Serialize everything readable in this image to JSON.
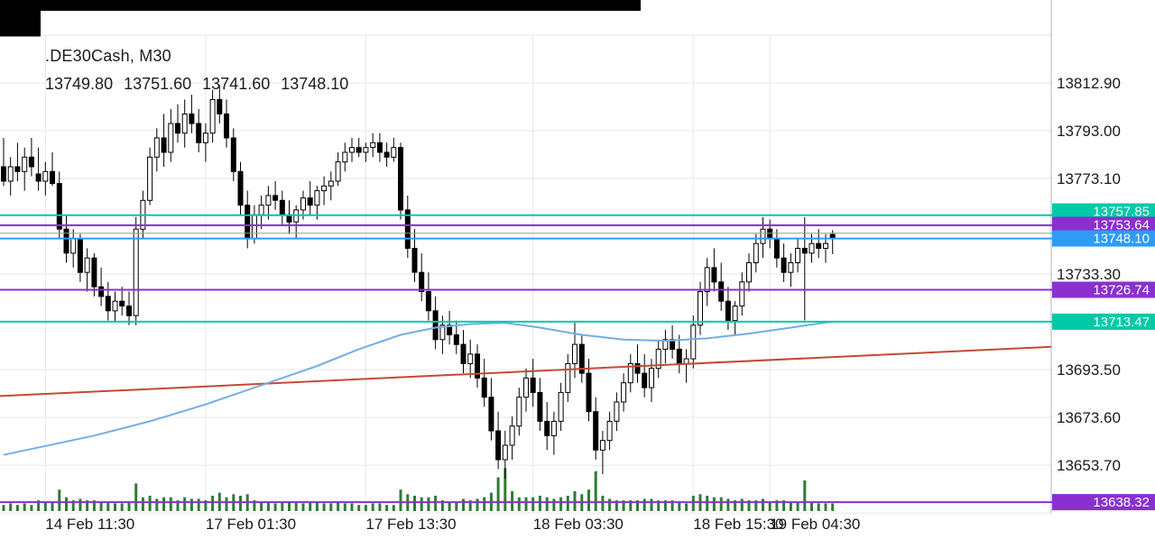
{
  "header": {
    "title": ".DE30Cash, M30",
    "ohlc_line": "13749.80 13751.60 13741.60 13748.10"
  },
  "chart_data": {
    "type": "candlestick",
    "symbol": ".DE30Cash",
    "timeframe": "M30",
    "last_bar": {
      "open": 13749.8,
      "high": 13751.6,
      "low": 13741.6,
      "close": 13748.1
    },
    "y_axis": {
      "grid_prices": [
        13832.8,
        13812.9,
        13793.0,
        13773.1,
        13753.2,
        13733.3,
        13713.4,
        13693.5,
        13673.6,
        13653.7,
        13633.8
      ],
      "labels": [
        {
          "text": "13812.90",
          "price": 13812.9
        },
        {
          "text": "13793.00",
          "price": 13793.0
        },
        {
          "text": "13773.10",
          "price": 13773.1
        },
        {
          "text": "13733.30",
          "price": 13733.3
        },
        {
          "text": "13693.50",
          "price": 13693.5
        },
        {
          "text": "13673.60",
          "price": 13673.6
        },
        {
          "text": "13653.70",
          "price": 13653.7
        }
      ]
    },
    "x_axis": {
      "labels": [
        {
          "text": "14 Feb 11:30",
          "index": 6
        },
        {
          "text": "17 Feb 01:30",
          "index": 29
        },
        {
          "text": "17 Feb 13:30",
          "index": 52
        },
        {
          "text": "18 Feb 03:30",
          "index": 76
        },
        {
          "text": "18 Feb 15:30",
          "index": 99
        },
        {
          "text": "19 Feb 04:30",
          "index": 110
        }
      ]
    },
    "levels": [
      {
        "text": "13757.85",
        "price": 13757.85,
        "color": "#00c9a8",
        "badge": true
      },
      {
        "text": "13753.64",
        "price": 13753.64,
        "color": "#8a2fd0",
        "badge": true
      },
      {
        "text": "",
        "price": 13750.3,
        "color": "#9a9a9a",
        "badge": false,
        "width": 1
      },
      {
        "text": "13748.10",
        "price": 13748.1,
        "color": "#2e9bf7",
        "badge": true
      },
      {
        "text": "13726.74",
        "price": 13726.74,
        "color": "#8a2fd0",
        "badge": true
      },
      {
        "text": "13713.47",
        "price": 13713.47,
        "color": "#00c9a8",
        "badge": true
      },
      {
        "text": "13638.32",
        "price": 13638.32,
        "color": "#8a2fd0",
        "badge": true
      }
    ],
    "series": {
      "candles": [
        [
          13778,
          13790,
          13770,
          13772
        ],
        [
          13772,
          13782,
          13766,
          13778
        ],
        [
          13778,
          13788,
          13772,
          13776
        ],
        [
          13776,
          13786,
          13768,
          13782
        ],
        [
          13782,
          13790,
          13774,
          13778
        ],
        [
          13775,
          13786,
          13768,
          13772
        ],
        [
          13772,
          13780,
          13766,
          13776
        ],
        [
          13776,
          13784,
          13770,
          13771
        ],
        [
          13771,
          13776,
          13748,
          13752
        ],
        [
          13752,
          13758,
          13738,
          13742
        ],
        [
          13742,
          13752,
          13736,
          13748
        ],
        [
          13748,
          13750,
          13730,
          13734
        ],
        [
          13734,
          13744,
          13726,
          13740
        ],
        [
          13740,
          13742,
          13724,
          13728
        ],
        [
          13728,
          13736,
          13720,
          13724
        ],
        [
          13724,
          13730,
          13714,
          13718
        ],
        [
          13718,
          13726,
          13713,
          13722
        ],
        [
          13722,
          13728,
          13716,
          13720
        ],
        [
          13720,
          13726,
          13712,
          13716
        ],
        [
          13716,
          13757,
          13712,
          13752
        ],
        [
          13752,
          13768,
          13748,
          13764
        ],
        [
          13764,
          13786,
          13762,
          13782
        ],
        [
          13782,
          13794,
          13776,
          13790
        ],
        [
          13790,
          13800,
          13778,
          13784
        ],
        [
          13784,
          13802,
          13780,
          13796
        ],
        [
          13796,
          13804,
          13788,
          13792
        ],
        [
          13792,
          13806,
          13786,
          13800
        ],
        [
          13800,
          13808,
          13792,
          13796
        ],
        [
          13796,
          13802,
          13784,
          13788
        ],
        [
          13788,
          13796,
          13780,
          13792
        ],
        [
          13792,
          13810,
          13788,
          13806
        ],
        [
          13806,
          13812,
          13796,
          13800
        ],
        [
          13800,
          13806,
          13786,
          13790
        ],
        [
          13790,
          13794,
          13772,
          13776
        ],
        [
          13776,
          13780,
          13758,
          13762
        ],
        [
          13762,
          13768,
          13744,
          13748
        ],
        [
          13748,
          13762,
          13746,
          13758
        ],
        [
          13758,
          13766,
          13752,
          13762
        ],
        [
          13762,
          13770,
          13756,
          13766
        ],
        [
          13766,
          13772,
          13760,
          13764
        ],
        [
          13764,
          13768,
          13754,
          13758
        ],
        [
          13758,
          13764,
          13750,
          13755
        ],
        [
          13755,
          13762,
          13748,
          13760
        ],
        [
          13760,
          13768,
          13756,
          13765
        ],
        [
          13765,
          13772,
          13758,
          13762
        ],
        [
          13762,
          13770,
          13756,
          13768
        ],
        [
          13768,
          13774,
          13762,
          13770
        ],
        [
          13770,
          13776,
          13764,
          13772
        ],
        [
          13772,
          13784,
          13770,
          13780
        ],
        [
          13780,
          13788,
          13776,
          13784
        ],
        [
          13784,
          13790,
          13780,
          13786
        ],
        [
          13786,
          13790,
          13782,
          13784
        ],
        [
          13784,
          13788,
          13780,
          13786
        ],
        [
          13786,
          13792,
          13782,
          13788
        ],
        [
          13788,
          13792,
          13780,
          13784
        ],
        [
          13784,
          13788,
          13778,
          13782
        ],
        [
          13782,
          13790,
          13780,
          13786
        ],
        [
          13786,
          13788,
          13756,
          13760
        ],
        [
          13760,
          13766,
          13740,
          13744
        ],
        [
          13744,
          13752,
          13730,
          13734
        ],
        [
          13734,
          13742,
          13722,
          13726
        ],
        [
          13726,
          13734,
          13714,
          13718
        ],
        [
          13718,
          13724,
          13702,
          13706
        ],
        [
          13706,
          13716,
          13700,
          13712
        ],
        [
          13712,
          13718,
          13704,
          13708
        ],
        [
          13708,
          13714,
          13700,
          13704
        ],
        [
          13704,
          13710,
          13692,
          13696
        ],
        [
          13696,
          13706,
          13690,
          13700
        ],
        [
          13700,
          13704,
          13686,
          13690
        ],
        [
          13690,
          13698,
          13678,
          13682
        ],
        [
          13682,
          13690,
          13664,
          13668
        ],
        [
          13668,
          13676,
          13652,
          13656
        ],
        [
          13656,
          13668,
          13648,
          13662
        ],
        [
          13662,
          13674,
          13656,
          13670
        ],
        [
          13670,
          13686,
          13666,
          13682
        ],
        [
          13682,
          13694,
          13676,
          13690
        ],
        [
          13690,
          13698,
          13678,
          13684
        ],
        [
          13684,
          13690,
          13668,
          13672
        ],
        [
          13672,
          13680,
          13660,
          13666
        ],
        [
          13666,
          13676,
          13658,
          13672
        ],
        [
          13672,
          13688,
          13668,
          13684
        ],
        [
          13684,
          13700,
          13680,
          13696
        ],
        [
          13696,
          13713,
          13690,
          13704
        ],
        [
          13704,
          13708,
          13688,
          13692
        ],
        [
          13692,
          13698,
          13672,
          13676
        ],
        [
          13676,
          13682,
          13656,
          13660
        ],
        [
          13660,
          13668,
          13650,
          13664
        ],
        [
          13664,
          13676,
          13660,
          13672
        ],
        [
          13672,
          13684,
          13668,
          13680
        ],
        [
          13680,
          13692,
          13676,
          13688
        ],
        [
          13688,
          13700,
          13684,
          13696
        ],
        [
          13696,
          13704,
          13688,
          13692
        ],
        [
          13692,
          13700,
          13682,
          13686
        ],
        [
          13686,
          13698,
          13680,
          13694
        ],
        [
          13694,
          13706,
          13690,
          13702
        ],
        [
          13702,
          13710,
          13696,
          13706
        ],
        [
          13706,
          13712,
          13698,
          13702
        ],
        [
          13702,
          13708,
          13692,
          13696
        ],
        [
          13696,
          13702,
          13688,
          13698
        ],
        [
          13698,
          13716,
          13694,
          13712
        ],
        [
          13712,
          13730,
          13708,
          13726
        ],
        [
          13726,
          13740,
          13720,
          13736
        ],
        [
          13736,
          13744,
          13726,
          13730
        ],
        [
          13730,
          13738,
          13718,
          13722
        ],
        [
          13722,
          13728,
          13710,
          13714
        ],
        [
          13714,
          13722,
          13708,
          13720
        ],
        [
          13720,
          13734,
          13716,
          13730
        ],
        [
          13730,
          13742,
          13726,
          13738
        ],
        [
          13738,
          13750,
          13734,
          13746
        ],
        [
          13746,
          13757,
          13740,
          13752
        ],
        [
          13752,
          13756,
          13744,
          13748
        ],
        [
          13748,
          13752,
          13736,
          13740
        ],
        [
          13740,
          13746,
          13730,
          13734
        ],
        [
          13734,
          13742,
          13728,
          13738
        ],
        [
          13738,
          13748,
          13734,
          13744
        ],
        [
          13744,
          13757,
          13714,
          13742
        ],
        [
          13742,
          13750,
          13738,
          13746
        ],
        [
          13746,
          13752,
          13740,
          13744
        ],
        [
          13744,
          13750,
          13738,
          13746
        ],
        [
          13749.8,
          13751.6,
          13741.6,
          13748.1
        ]
      ],
      "volumes": [
        4,
        5,
        4,
        5,
        4,
        7,
        6,
        6,
        14,
        9,
        7,
        8,
        7,
        7,
        6,
        6,
        5,
        5,
        6,
        18,
        9,
        10,
        8,
        9,
        9,
        7,
        9,
        8,
        8,
        7,
        10,
        12,
        9,
        11,
        10,
        11,
        7,
        6,
        6,
        5,
        6,
        6,
        6,
        5,
        6,
        6,
        5,
        5,
        6,
        5,
        5,
        4,
        4,
        5,
        5,
        4,
        4,
        14,
        11,
        10,
        9,
        9,
        10,
        7,
        6,
        6,
        8,
        7,
        8,
        9,
        12,
        22,
        28,
        13,
        9,
        9,
        9,
        10,
        9,
        8,
        9,
        10,
        13,
        11,
        14,
        26,
        10,
        8,
        7,
        7,
        7,
        7,
        8,
        8,
        7,
        7,
        7,
        6,
        5,
        10,
        11,
        10,
        9,
        9,
        8,
        7,
        8,
        7,
        7,
        8,
        6,
        7,
        7,
        6,
        6,
        20,
        6,
        5,
        5,
        5
      ],
      "ma": {
        "name": "moving-average",
        "color": "#72aee6",
        "points": [
          [
            0,
            13658
          ],
          [
            13,
            13666
          ],
          [
            21,
            13672
          ],
          [
            29,
            13679
          ],
          [
            37,
            13687
          ],
          [
            45,
            13695
          ],
          [
            51,
            13702
          ],
          [
            57,
            13708
          ],
          [
            62,
            13711
          ],
          [
            67,
            13712.5
          ],
          [
            72,
            13713
          ],
          [
            77,
            13711
          ],
          [
            83,
            13708
          ],
          [
            89,
            13706
          ],
          [
            95,
            13705.5
          ],
          [
            101,
            13706.5
          ],
          [
            107,
            13708.5
          ],
          [
            113,
            13711
          ],
          [
            119,
            13713.5
          ]
        ]
      },
      "trendline": {
        "name": "trendline",
        "color": "#c44a36",
        "price_start": 13682.5,
        "price_end": 13703
      }
    },
    "colors": {
      "bull": "#ffffff",
      "bear": "#000000",
      "wick": "#000000",
      "volume": "#2e7d32",
      "grid": "#e7e7e7",
      "axis_separator": "#b3b3b3",
      "axis_text": "#1a1a1a",
      "badge_text": "#ffffff"
    }
  }
}
